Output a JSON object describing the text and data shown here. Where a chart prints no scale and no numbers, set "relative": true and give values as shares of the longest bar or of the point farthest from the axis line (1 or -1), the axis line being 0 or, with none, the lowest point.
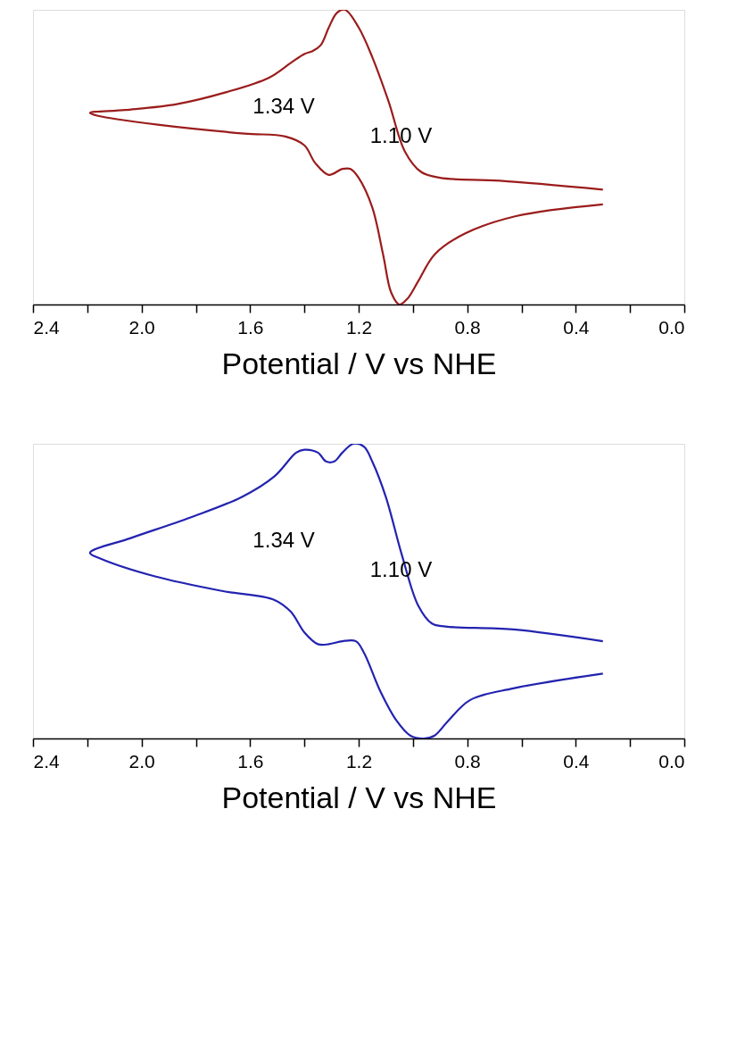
{
  "chart_data": [
    {
      "type": "line",
      "xlabel": "Potential / V vs NHE",
      "relative": true,
      "xlim": [
        2.4,
        0.0
      ],
      "xticks": [
        2.4,
        {
          "value": 2.2,
          "label": null
        },
        {
          "value": 2.0,
          "label": "2.0"
        },
        {
          "value": 1.8,
          "label": null
        },
        1.6,
        {
          "value": 1.4,
          "label": null
        },
        1.2,
        {
          "value": 1.0,
          "label": null
        },
        0.8,
        {
          "value": 0.6,
          "label": null
        },
        0.4,
        {
          "value": 0.2,
          "label": null
        },
        {
          "value": 0.0,
          "label": "0.0"
        }
      ],
      "tick_labels": "x",
      "grid": false,
      "legend": false,
      "series": [
        {
          "color": "#9b1c1c",
          "x": [
            0.3,
            0.68,
            0.9,
            0.97,
            1.03,
            1.09,
            1.15,
            1.2,
            1.25,
            1.28,
            1.31,
            1.34,
            1.37,
            1.4,
            1.45,
            1.53,
            1.69,
            1.87,
            2.06,
            2.19,
            2.16,
            1.94,
            1.62,
            1.47,
            1.4,
            1.36,
            1.31,
            1.26,
            1.23,
            1.2,
            1.15,
            1.11,
            1.08,
            1.05,
            1.02,
            0.98,
            0.92,
            0.81,
            0.62,
            0.3
          ],
          "values": [
            0.39,
            0.42,
            0.43,
            0.45,
            0.52,
            0.69,
            0.84,
            0.94,
            1.0,
            0.99,
            0.94,
            0.88,
            0.86,
            0.85,
            0.82,
            0.77,
            0.72,
            0.68,
            0.66,
            0.65,
            0.64,
            0.61,
            0.58,
            0.57,
            0.54,
            0.48,
            0.44,
            0.46,
            0.46,
            0.43,
            0.33,
            0.17,
            0.04,
            0.0,
            0.02,
            0.08,
            0.17,
            0.24,
            0.3,
            0.34
          ]
        }
      ],
      "annotations": [
        "1.34 V",
        "1.10 V"
      ]
    },
    {
      "type": "line",
      "xlabel": "Potential / V vs NHE",
      "relative": true,
      "xlim": [
        2.4,
        0.0
      ],
      "xticks": [
        2.4,
        {
          "value": 2.2,
          "label": null
        },
        {
          "value": 2.0,
          "label": "2.0"
        },
        {
          "value": 1.8,
          "label": null
        },
        1.6,
        {
          "value": 1.4,
          "label": null
        },
        1.2,
        {
          "value": 1.0,
          "label": null
        },
        0.8,
        {
          "value": 0.6,
          "label": null
        },
        0.4,
        {
          "value": 0.2,
          "label": null
        },
        {
          "value": 0.0,
          "label": "0.0"
        }
      ],
      "tick_labels": "x",
      "grid": false,
      "legend": false,
      "series": [
        {
          "color": "#2323b0",
          "x": [
            0.3,
            0.63,
            0.88,
            0.93,
            0.98,
            1.04,
            1.1,
            1.15,
            1.18,
            1.22,
            1.26,
            1.29,
            1.32,
            1.35,
            1.4,
            1.43,
            1.51,
            1.63,
            1.82,
            2.04,
            2.19,
            2.15,
            1.95,
            1.7,
            1.51,
            1.45,
            1.4,
            1.35,
            1.31,
            1.26,
            1.21,
            1.18,
            1.12,
            1.06,
            1.01,
            0.96,
            0.92,
            0.87,
            0.79,
            0.63,
            0.3
          ],
          "values": [
            0.33,
            0.37,
            0.38,
            0.39,
            0.45,
            0.62,
            0.82,
            0.94,
            0.99,
            1.0,
            0.97,
            0.94,
            0.94,
            0.97,
            0.98,
            0.97,
            0.89,
            0.82,
            0.75,
            0.68,
            0.63,
            0.61,
            0.55,
            0.5,
            0.47,
            0.43,
            0.36,
            0.32,
            0.32,
            0.33,
            0.33,
            0.29,
            0.16,
            0.06,
            0.01,
            0.0,
            0.01,
            0.06,
            0.13,
            0.17,
            0.22
          ]
        }
      ],
      "annotations": [
        "1.34 V",
        "1.10 V"
      ]
    }
  ]
}
